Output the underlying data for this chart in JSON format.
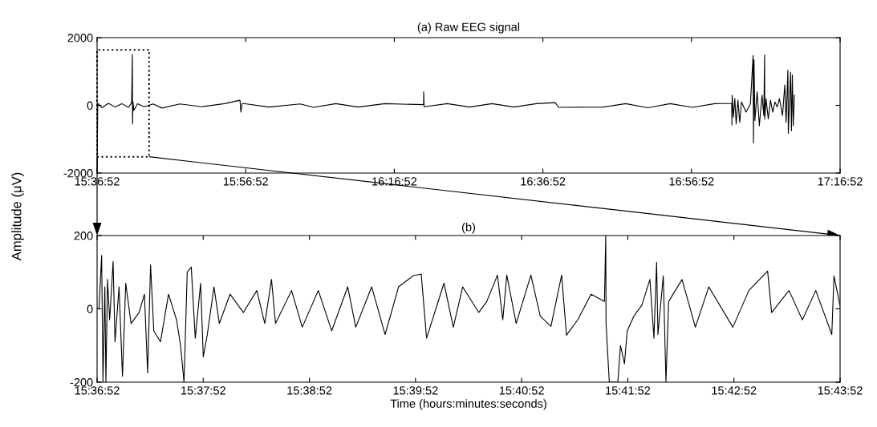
{
  "chart_data": [
    {
      "type": "line",
      "title": "(a) Raw EEG signal",
      "ylabel": "Amplitude (μV)",
      "xlim": [
        15.614444,
        17.281111
      ],
      "xticks": [
        {
          "value": 15.614444,
          "label": "15:36:52"
        },
        {
          "value": 15.947778,
          "label": "15:56:52"
        },
        {
          "value": 16.281111,
          "label": "16:16:52"
        },
        {
          "value": 16.614444,
          "label": "16:36:52"
        },
        {
          "value": 16.947778,
          "label": "16:56:52"
        },
        {
          "value": 17.281111,
          "label": "17:16:52"
        }
      ],
      "ylim": [
        -2000,
        2000
      ],
      "yticks": [
        -2000,
        0,
        2000
      ],
      "series": [
        {
          "color": "#000000",
          "x": [
            15.6145,
            15.616,
            15.625,
            15.64,
            15.655,
            15.67,
            15.685,
            15.692,
            15.6936,
            15.694,
            15.695,
            15.697,
            15.705,
            15.72,
            15.74,
            15.76,
            15.8,
            15.85,
            15.9,
            15.935,
            15.937,
            15.94,
            16.0,
            16.07,
            16.1,
            16.15,
            16.2,
            16.26,
            16.3469,
            16.347,
            16.348,
            16.4,
            16.45,
            16.5,
            16.55,
            16.6,
            16.642,
            16.65,
            16.75,
            16.8,
            16.85,
            16.9,
            16.95,
            17.0,
            17.038,
            17.0385,
            17.039,
            17.042,
            17.045,
            17.048,
            17.052,
            17.056,
            17.06,
            17.07,
            17.08,
            17.086,
            17.0868,
            17.088,
            17.09,
            17.095,
            17.1,
            17.106,
            17.11,
            17.1118,
            17.1122,
            17.115,
            17.12,
            17.125,
            17.13,
            17.135,
            17.14,
            17.145,
            17.152,
            17.157,
            17.16,
            17.164,
            17.165,
            17.17,
            17.172,
            17.174,
            17.176,
            17.1786
          ],
          "values": [
            -1900,
            60,
            -70,
            60,
            -50,
            50,
            -60,
            80,
            1500,
            -550,
            100,
            -150,
            50,
            -40,
            40,
            -80,
            40,
            -40,
            50,
            150,
            -200,
            60,
            -50,
            40,
            -60,
            50,
            -50,
            50,
            20,
            400,
            -40,
            50,
            -50,
            50,
            -50,
            50,
            80,
            -60,
            -50,
            50,
            -70,
            50,
            -60,
            50,
            60,
            -580,
            300,
            -350,
            200,
            -550,
            150,
            -500,
            100,
            -200,
            50,
            1470,
            -1110,
            1350,
            -450,
            400,
            -600,
            300,
            -300,
            1490,
            -400,
            200,
            -400,
            150,
            -200,
            100,
            -50,
            200,
            -300,
            600,
            -500,
            1040,
            -830,
            980,
            -750,
            900,
            -600,
            300
          ]
        }
      ]
    },
    {
      "type": "line",
      "title": "(b)",
      "xlabel": "Time (hours:minutes:seconds)",
      "xlim": [
        15.614444,
        15.731111
      ],
      "xticks": [
        {
          "value": 15.614444,
          "label": "15:36:52"
        },
        {
          "value": 15.631111,
          "label": "15:37:52"
        },
        {
          "value": 15.647778,
          "label": "15:38:52"
        },
        {
          "value": 15.664444,
          "label": "15:39:52"
        },
        {
          "value": 15.681111,
          "label": "15:40:52"
        },
        {
          "value": 15.697778,
          "label": "15:41:52"
        },
        {
          "value": 15.714444,
          "label": "15:42:52"
        },
        {
          "value": 15.731111,
          "label": "15:43:52"
        }
      ],
      "ylim": [
        -200,
        200
      ],
      "yticks": [
        -200,
        0,
        200
      ],
      "series": [
        {
          "color": "#000000",
          "x": [
            15.61474,
            15.61516,
            15.61537,
            15.61566,
            15.61583,
            15.61608,
            15.61642,
            15.61696,
            15.61726,
            15.61789,
            15.61843,
            15.61894,
            15.61978,
            15.62104,
            15.62188,
            15.62238,
            15.62284,
            15.62335,
            15.6244,
            15.62566,
            15.62692,
            15.62755,
            15.62809,
            15.6286,
            15.62923,
            15.62986,
            15.6307,
            15.63112,
            15.63175,
            15.6328,
            15.63364,
            15.63532,
            15.63742,
            15.63952,
            15.64078,
            15.64183,
            15.64246,
            15.64498,
            15.64666,
            15.64918,
            15.65128,
            15.6538,
            15.65506,
            15.65757,
            15.65967,
            15.66178,
            15.66408,
            15.66534,
            15.66618,
            15.66891,
            15.67038,
            15.67185,
            15.67437,
            15.67563,
            15.67731,
            15.67815,
            15.67878,
            15.68025,
            15.68256,
            15.68403,
            15.68571,
            15.68739,
            15.68815,
            15.68991,
            15.69201,
            15.69411,
            15.69432,
            15.69436,
            15.69487,
            15.69621,
            15.69663,
            15.69726,
            15.69768,
            15.69873,
            15.69999,
            15.70125,
            15.70188,
            15.7023,
            15.70251,
            15.70335,
            15.70377,
            15.70419,
            15.70629,
            15.70839,
            15.71049,
            15.71427,
            15.71679,
            15.71973,
            15.72036,
            15.72309,
            15.72519,
            15.72729,
            15.72981,
            15.73015,
            15.73108
          ],
          "values": [
            0,
            146,
            -200,
            60,
            -200,
            80,
            -30,
            129,
            -90,
            60,
            -184,
            70,
            -40,
            -10,
            40,
            -175,
            120,
            -60,
            -90,
            40,
            -30,
            -100,
            -200,
            100,
            114,
            -80,
            70,
            -131,
            -70,
            60,
            -40,
            40,
            -10,
            50,
            -40,
            80,
            -40,
            50,
            -50,
            50,
            -60,
            60,
            -50,
            60,
            -70,
            60,
            90,
            95,
            -80,
            70,
            -50,
            60,
            -10,
            20,
            92,
            -30,
            92,
            -40,
            92,
            -20,
            -48,
            92,
            -72,
            -30,
            40,
            20,
            200,
            -40,
            -200,
            -200,
            -100,
            -150,
            -60,
            -20,
            10,
            80,
            -80,
            127,
            -70,
            90,
            -200,
            20,
            80,
            -50,
            60,
            -50,
            50,
            103,
            -10,
            50,
            -30,
            50,
            -70,
            90,
            10
          ]
        }
      ]
    }
  ]
}
